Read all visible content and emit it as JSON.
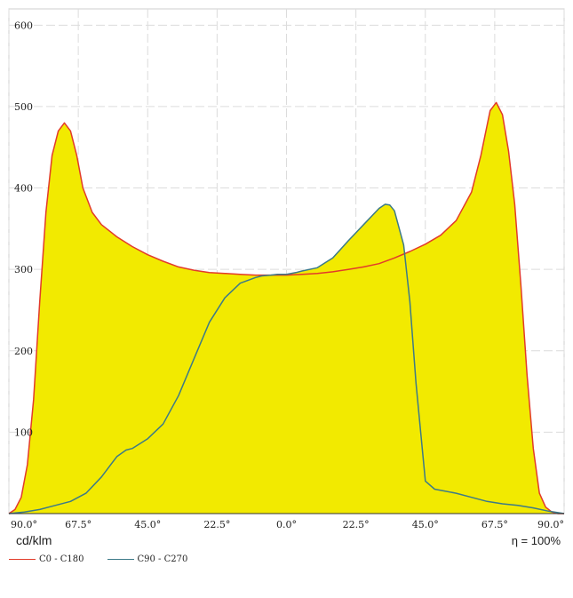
{
  "chart_data": {
    "type": "line",
    "unit_label": "cd/klm",
    "efficiency_label": "η = 100%",
    "x_tick_labels": [
      "90.0°",
      "67.5°",
      "45.0°",
      "22.5°",
      "0.0°",
      "22.5°",
      "45.0°",
      "67.5°",
      "90.0°"
    ],
    "x_tick_values": [
      -90,
      -67.5,
      -45,
      -22.5,
      0,
      22.5,
      45,
      67.5,
      90
    ],
    "xlim": [
      -90,
      90
    ],
    "y_tick_labels": [
      "100",
      "200",
      "300",
      "400",
      "500",
      "600"
    ],
    "y_tick_values": [
      100,
      200,
      300,
      400,
      500,
      600
    ],
    "ylim": [
      0,
      620
    ],
    "grid": true,
    "fill_color": "#f2ea00",
    "series": [
      {
        "name": "C0 - C180",
        "color": "#e23b2a",
        "x": [
          -90,
          -88,
          -86,
          -84,
          -82,
          -80,
          -78,
          -76,
          -74,
          -72,
          -70,
          -68,
          -66,
          -63,
          -60,
          -55,
          -50,
          -45,
          -40,
          -35,
          -30,
          -25,
          -20,
          -15,
          -10,
          -5,
          0,
          5,
          10,
          15,
          20,
          25,
          30,
          35,
          40,
          45,
          50,
          55,
          60,
          63,
          66,
          68,
          70,
          72,
          74,
          76,
          78,
          80,
          82,
          84,
          86,
          88,
          90
        ],
        "y": [
          0,
          5,
          20,
          60,
          140,
          260,
          370,
          440,
          470,
          480,
          470,
          440,
          400,
          370,
          355,
          340,
          328,
          318,
          310,
          303,
          299,
          296,
          295,
          294,
          293,
          293,
          293,
          294,
          295,
          297,
          300,
          303,
          307,
          314,
          322,
          331,
          342,
          360,
          395,
          440,
          495,
          505,
          490,
          445,
          380,
          280,
          170,
          80,
          25,
          8,
          2,
          0,
          0
        ]
      },
      {
        "name": "C90 - C270",
        "color": "#3c7a88",
        "x": [
          -90,
          -85,
          -80,
          -75,
          -70,
          -65,
          -60,
          -55,
          -52,
          -50,
          -45,
          -40,
          -35,
          -30,
          -25,
          -20,
          -15,
          -10,
          -8,
          -5,
          -3,
          0,
          3,
          5,
          10,
          15,
          20,
          25,
          30,
          32,
          33.5,
          35,
          38,
          40,
          42,
          45,
          48,
          55,
          60,
          65,
          70,
          75,
          80,
          85,
          90
        ],
        "y": [
          0,
          2,
          5,
          10,
          15,
          25,
          45,
          70,
          78,
          80,
          92,
          110,
          145,
          190,
          235,
          265,
          283,
          290,
          292,
          293,
          294,
          294,
          296,
          298,
          302,
          314,
          335,
          355,
          375,
          380,
          379,
          372,
          330,
          260,
          160,
          40,
          30,
          25,
          20,
          15,
          12,
          10,
          7,
          3,
          0
        ]
      }
    ]
  }
}
